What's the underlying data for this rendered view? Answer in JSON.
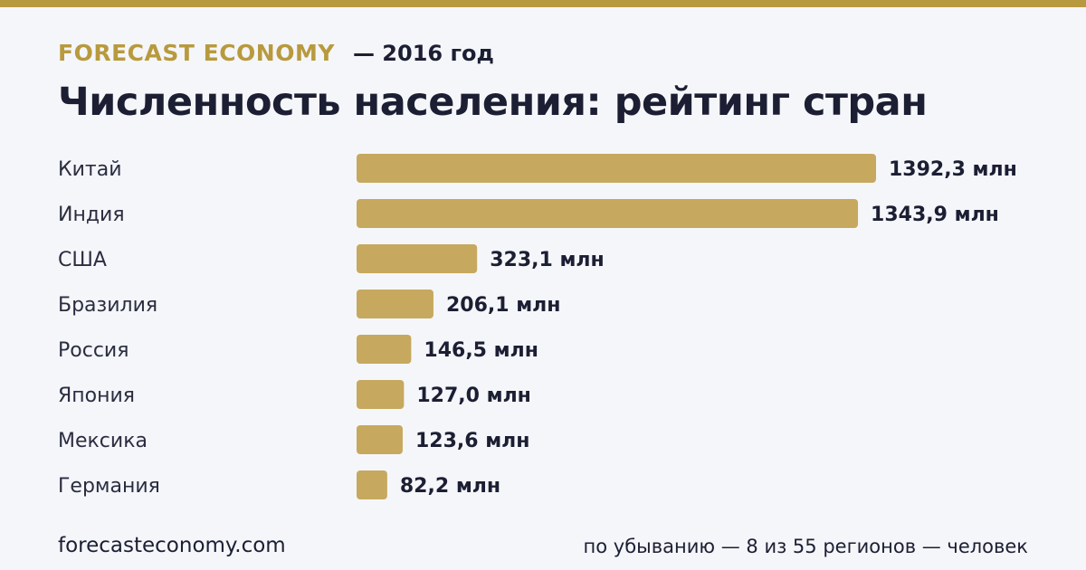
{
  "header": {
    "brand": "FORECAST ECONOMY",
    "year_note": "— 2016 год",
    "title": "Численность населения: рейтинг стран"
  },
  "footer": {
    "site": "forecasteconomy.com",
    "note": "по убыванию — 8 из 55 регионов — человек"
  },
  "colors": {
    "accent": "#b89a3e",
    "bar": "#c6a95e",
    "background": "#f5f6fa",
    "text": "#1c1f33"
  },
  "chart_data": {
    "type": "bar",
    "orientation": "horizontal",
    "title": "Численность населения: рейтинг стран",
    "categories": [
      "Китай",
      "Индия",
      "США",
      "Бразилия",
      "Россия",
      "Япония",
      "Мексика",
      "Германия"
    ],
    "values": [
      1392.3,
      1343.9,
      323.1,
      206.1,
      146.5,
      127.0,
      123.6,
      82.2
    ],
    "value_labels": [
      "1392,3 млн",
      "1343,9 млн",
      "323,1 млн",
      "206,1 млн",
      "146,5 млн",
      "127,0 млн",
      "123,6 млн",
      "82,2 млн"
    ],
    "xlim": [
      0,
      1392.3
    ],
    "grid": false,
    "legend": "none"
  }
}
